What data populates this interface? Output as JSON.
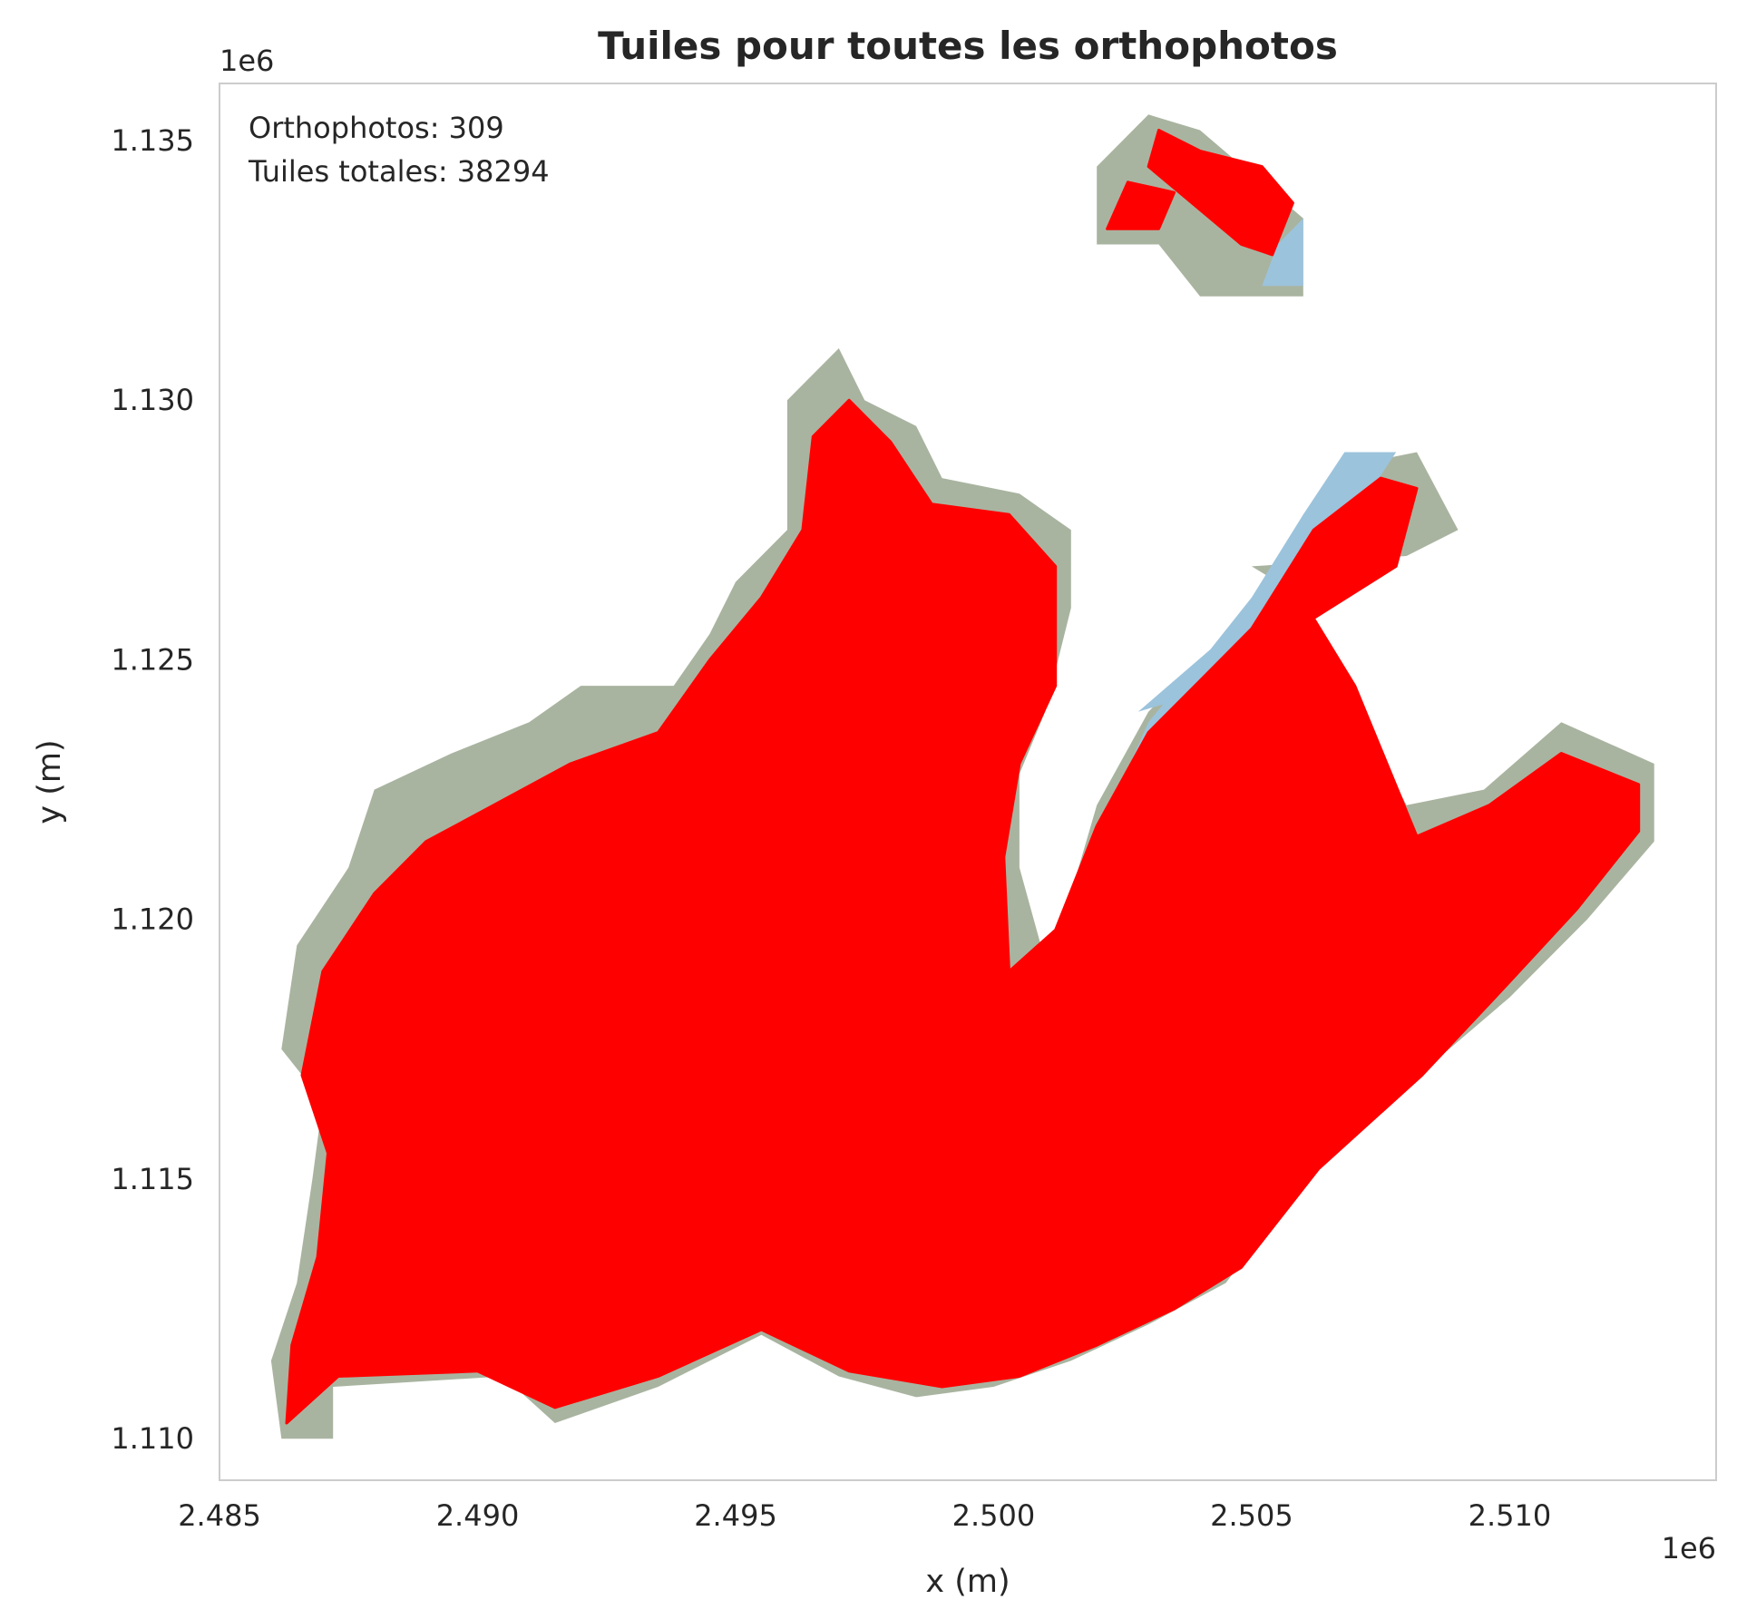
{
  "chart_data": {
    "type": "map",
    "title": "Tuiles pour toutes les orthophotos",
    "xlabel": "x (m)",
    "ylabel": "y (m)",
    "x_offset_label": "1e6",
    "y_offset_label": "1e6",
    "xlim": [
      2.485,
      2.514
    ],
    "ylim": [
      1.1092,
      1.1361
    ],
    "x_ticks": [
      2.485,
      2.49,
      2.495,
      2.5,
      2.505,
      2.51
    ],
    "x_tick_labels": [
      "2.485",
      "2.490",
      "2.495",
      "2.500",
      "2.505",
      "2.510"
    ],
    "y_ticks": [
      1.11,
      1.115,
      1.12,
      1.125,
      1.13,
      1.135
    ],
    "y_tick_labels": [
      "1.110",
      "1.115",
      "1.120",
      "1.125",
      "1.130",
      "1.135"
    ],
    "grid": false,
    "annotation_lines": [
      "Orthophotos: 309",
      "Tuiles totales: 38294"
    ],
    "annotation_position": "top-left",
    "colors": {
      "tiles": "#ff0000",
      "orthophoto_land": "#a9b4a0",
      "orthophoto_water": "#9cc3dc",
      "axis_frame": "#cccccc"
    },
    "orthophoto_footprint": [
      [
        2.4862,
        1.11
      ],
      [
        2.4872,
        1.11
      ],
      [
        2.4872,
        1.111
      ],
      [
        2.4905,
        1.1112
      ],
      [
        2.4915,
        1.1103
      ],
      [
        2.4935,
        1.111
      ],
      [
        2.4955,
        1.112
      ],
      [
        2.497,
        1.1112
      ],
      [
        2.4985,
        1.1108
      ],
      [
        2.5,
        1.111
      ],
      [
        2.5015,
        1.1115
      ],
      [
        2.503,
        1.1122
      ],
      [
        2.5045,
        1.113
      ],
      [
        2.506,
        1.115
      ],
      [
        2.508,
        1.1168
      ],
      [
        2.51,
        1.1185
      ],
      [
        2.5115,
        1.12
      ],
      [
        2.5128,
        1.1215
      ],
      [
        2.5128,
        1.123
      ],
      [
        2.511,
        1.1238
      ],
      [
        2.5095,
        1.1225
      ],
      [
        2.508,
        1.1222
      ],
      [
        2.5065,
        1.1252
      ],
      [
        2.506,
        1.1262
      ],
      [
        2.505,
        1.1268
      ],
      [
        2.508,
        1.127
      ],
      [
        2.509,
        1.1275
      ],
      [
        2.5082,
        1.129
      ],
      [
        2.5072,
        1.1288
      ],
      [
        2.506,
        1.1278
      ],
      [
        2.505,
        1.1258
      ],
      [
        2.5038,
        1.1248
      ],
      [
        2.503,
        1.124
      ],
      [
        2.502,
        1.1222
      ],
      [
        2.5015,
        1.1205
      ],
      [
        2.501,
        1.1192
      ],
      [
        2.5005,
        1.121
      ],
      [
        2.5005,
        1.1228
      ],
      [
        2.501,
        1.124
      ],
      [
        2.5015,
        1.126
      ],
      [
        2.5015,
        1.1275
      ],
      [
        2.5005,
        1.1282
      ],
      [
        2.499,
        1.1285
      ],
      [
        2.4985,
        1.1295
      ],
      [
        2.4975,
        1.13
      ],
      [
        2.497,
        1.131
      ],
      [
        2.496,
        1.13
      ],
      [
        2.496,
        1.1275
      ],
      [
        2.495,
        1.1265
      ],
      [
        2.4945,
        1.1255
      ],
      [
        2.4938,
        1.1245
      ],
      [
        2.492,
        1.1245
      ],
      [
        2.491,
        1.1238
      ],
      [
        2.4895,
        1.1232
      ],
      [
        2.488,
        1.1225
      ],
      [
        2.4875,
        1.121
      ],
      [
        2.4865,
        1.1195
      ],
      [
        2.4862,
        1.1175
      ],
      [
        2.487,
        1.1165
      ],
      [
        2.4868,
        1.115
      ],
      [
        2.4865,
        1.113
      ],
      [
        2.486,
        1.1115
      ],
      [
        2.4862,
        1.11
      ]
    ],
    "orthophoto_north_footprint": [
      [
        2.502,
        1.133
      ],
      [
        2.5032,
        1.133
      ],
      [
        2.504,
        1.132
      ],
      [
        2.506,
        1.132
      ],
      [
        2.506,
        1.1335
      ],
      [
        2.504,
        1.1352
      ],
      [
        2.503,
        1.1355
      ],
      [
        2.502,
        1.1345
      ],
      [
        2.502,
        1.133
      ]
    ],
    "water_areas": [
      [
        [
          2.5005,
          1.119
        ],
        [
          2.5015,
          1.1195
        ],
        [
          2.5022,
          1.122
        ],
        [
          2.503,
          1.1238
        ],
        [
          2.504,
          1.125
        ],
        [
          2.504,
          1.1235
        ],
        [
          2.503,
          1.122
        ],
        [
          2.502,
          1.12
        ],
        [
          2.501,
          1.1188
        ]
      ],
      [
        [
          2.5028,
          1.124
        ],
        [
          2.5042,
          1.1252
        ],
        [
          2.505,
          1.1262
        ],
        [
          2.506,
          1.1278
        ],
        [
          2.5068,
          1.129
        ],
        [
          2.5078,
          1.129
        ],
        [
          2.507,
          1.1278
        ],
        [
          2.5058,
          1.126
        ],
        [
          2.5045,
          1.1245
        ]
      ],
      [
        [
          2.5052,
          1.1322
        ],
        [
          2.506,
          1.1322
        ],
        [
          2.506,
          1.1335
        ],
        [
          2.5055,
          1.133
        ]
      ]
    ],
    "tile_coverage": [
      [
        2.4863,
        1.1103
      ],
      [
        2.4873,
        1.1112
      ],
      [
        2.49,
        1.1113
      ],
      [
        2.4915,
        1.1106
      ],
      [
        2.4935,
        1.1112
      ],
      [
        2.4955,
        1.1121
      ],
      [
        2.4972,
        1.1113
      ],
      [
        2.499,
        1.111
      ],
      [
        2.5005,
        1.1112
      ],
      [
        2.502,
        1.1118
      ],
      [
        2.5035,
        1.1125
      ],
      [
        2.5048,
        1.1133
      ],
      [
        2.5063,
        1.1152
      ],
      [
        2.5083,
        1.117
      ],
      [
        2.51,
        1.1188
      ],
      [
        2.5113,
        1.1202
      ],
      [
        2.5125,
        1.1217
      ],
      [
        2.5125,
        1.1226
      ],
      [
        2.511,
        1.1232
      ],
      [
        2.5096,
        1.1222
      ],
      [
        2.5082,
        1.1216
      ],
      [
        2.507,
        1.1245
      ],
      [
        2.5062,
        1.1258
      ],
      [
        2.5078,
        1.1268
      ],
      [
        2.5082,
        1.1283
      ],
      [
        2.5075,
        1.1285
      ],
      [
        2.5062,
        1.1275
      ],
      [
        2.505,
        1.1256
      ],
      [
        2.504,
        1.1246
      ],
      [
        2.503,
        1.1236
      ],
      [
        2.502,
        1.1218
      ],
      [
        2.5012,
        1.1198
      ],
      [
        2.5003,
        1.119
      ],
      [
        2.5002,
        1.1212
      ],
      [
        2.5005,
        1.123
      ],
      [
        2.5012,
        1.1245
      ],
      [
        2.5012,
        1.1268
      ],
      [
        2.5003,
        1.1278
      ],
      [
        2.4988,
        1.128
      ],
      [
        2.498,
        1.1292
      ],
      [
        2.4972,
        1.13
      ],
      [
        2.4965,
        1.1293
      ],
      [
        2.4963,
        1.1275
      ],
      [
        2.4955,
        1.1262
      ],
      [
        2.4945,
        1.125
      ],
      [
        2.4935,
        1.1236
      ],
      [
        2.4918,
        1.123
      ],
      [
        2.4905,
        1.1223
      ],
      [
        2.489,
        1.1215
      ],
      [
        2.488,
        1.1205
      ],
      [
        2.487,
        1.119
      ],
      [
        2.4866,
        1.117
      ],
      [
        2.4871,
        1.1155
      ],
      [
        2.4869,
        1.1135
      ],
      [
        2.4864,
        1.1118
      ],
      [
        2.4863,
        1.1103
      ]
    ],
    "tile_clusters_north": [
      [
        [
          2.5022,
          1.1333
        ],
        [
          2.5032,
          1.1333
        ],
        [
          2.5035,
          1.134
        ],
        [
          2.5026,
          1.1342
        ]
      ],
      [
        [
          2.5036,
          1.134
        ],
        [
          2.5048,
          1.133
        ],
        [
          2.5054,
          1.1328
        ],
        [
          2.5058,
          1.1338
        ],
        [
          2.5052,
          1.1345
        ],
        [
          2.504,
          1.1348
        ],
        [
          2.5032,
          1.1352
        ],
        [
          2.503,
          1.1345
        ]
      ]
    ]
  }
}
